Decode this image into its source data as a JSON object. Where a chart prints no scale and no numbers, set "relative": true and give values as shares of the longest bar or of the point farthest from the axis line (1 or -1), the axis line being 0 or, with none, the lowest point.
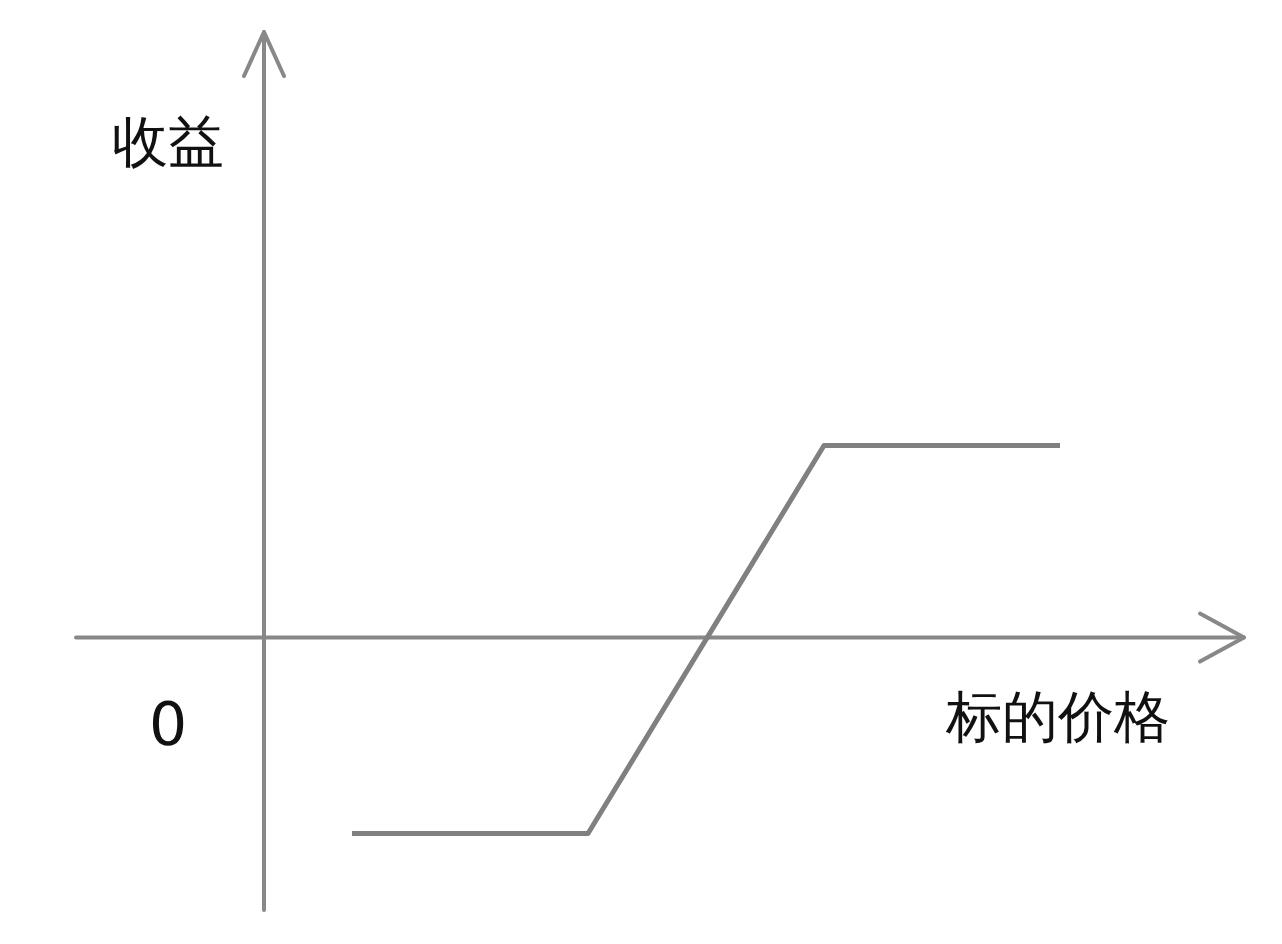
{
  "chart_data": {
    "type": "line",
    "xlabel": "标的价格",
    "ylabel": "收益",
    "categories": [
      null,
      null,
      null,
      null
    ],
    "relative": true,
    "series": [
      {
        "color": "#808080",
        "values": [
          -1,
          -1,
          0.98,
          0.98
        ]
      }
    ],
    "annotations": [
      "0"
    ]
  }
}
